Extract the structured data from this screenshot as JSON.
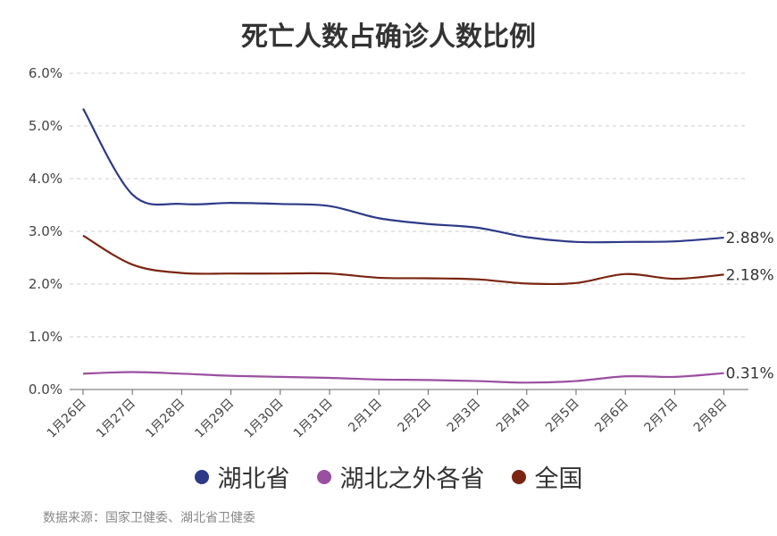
{
  "chart_data": {
    "type": "line",
    "title": "死亡人数占确诊人数比例",
    "categories": [
      "1月26日",
      "1月27日",
      "1月28日",
      "1月29日",
      "1月30日",
      "1月31日",
      "2月1日",
      "2月2日",
      "2月3日",
      "2月4日",
      "2月5日",
      "2月6日",
      "2月7日",
      "2月8日"
    ],
    "y_ticks": [
      "0.0%",
      "1.0%",
      "2.0%",
      "3.0%",
      "4.0%",
      "5.0%",
      "6.0%"
    ],
    "ylim": [
      0,
      6
    ],
    "grid": true,
    "legend_position": "bottom",
    "series": [
      {
        "name": "湖北省",
        "color": "#2e3a87",
        "end_label": "2.88%",
        "values": [
          5.33,
          3.7,
          3.52,
          3.54,
          3.52,
          3.48,
          3.25,
          3.14,
          3.07,
          2.89,
          2.8,
          2.8,
          2.81,
          2.88
        ]
      },
      {
        "name": "湖北之外各省",
        "color": "#9a4fa0",
        "end_label": "0.31%",
        "values": [
          0.3,
          0.33,
          0.3,
          0.26,
          0.24,
          0.22,
          0.19,
          0.18,
          0.16,
          0.13,
          0.16,
          0.25,
          0.24,
          0.31
        ]
      },
      {
        "name": "全国",
        "color": "#7a2512",
        "end_label": "2.18%",
        "values": [
          2.92,
          2.37,
          2.21,
          2.2,
          2.2,
          2.2,
          2.12,
          2.11,
          2.09,
          2.01,
          2.02,
          2.19,
          2.1,
          2.18
        ]
      }
    ]
  },
  "source_text": "数据来源：国家卫健委、湖北省卫健委"
}
